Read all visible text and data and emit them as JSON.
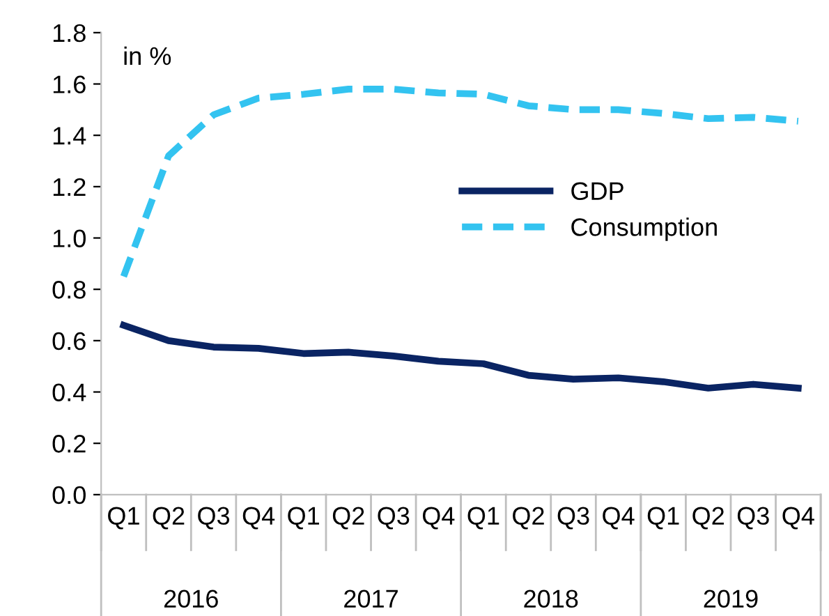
{
  "chart_data": {
    "type": "line",
    "ylabel": "in %",
    "categories": [
      "Q1",
      "Q2",
      "Q3",
      "Q4",
      "Q1",
      "Q2",
      "Q3",
      "Q4",
      "Q1",
      "Q2",
      "Q3",
      "Q4",
      "Q1",
      "Q2",
      "Q3",
      "Q4"
    ],
    "annotations": [
      "2016",
      "2017",
      "2018",
      "2019"
    ],
    "series": [
      {
        "name": "GDP",
        "color": "#0a2463",
        "line_style": "solid",
        "values": [
          0.66,
          0.6,
          0.575,
          0.57,
          0.55,
          0.555,
          0.54,
          0.52,
          0.51,
          0.465,
          0.45,
          0.455,
          0.44,
          0.415,
          0.43,
          0.415
        ]
      },
      {
        "name": "Consumption",
        "color": "#33c3f0",
        "line_style": "dashed",
        "values": [
          0.85,
          1.32,
          1.48,
          1.545,
          1.56,
          1.58,
          1.58,
          1.565,
          1.56,
          1.515,
          1.5,
          1.5,
          1.485,
          1.465,
          1.47,
          1.455
        ]
      }
    ],
    "ylim": [
      0,
      1.8
    ],
    "yticks": [
      {
        "value": 0,
        "label": "0.0"
      },
      0.2,
      0.4,
      0.6,
      0.8,
      {
        "value": 1,
        "label": "1.0"
      },
      1.2,
      1.4,
      1.6,
      1.8
    ],
    "legend": "center",
    "grid": false,
    "marker": "none"
  }
}
